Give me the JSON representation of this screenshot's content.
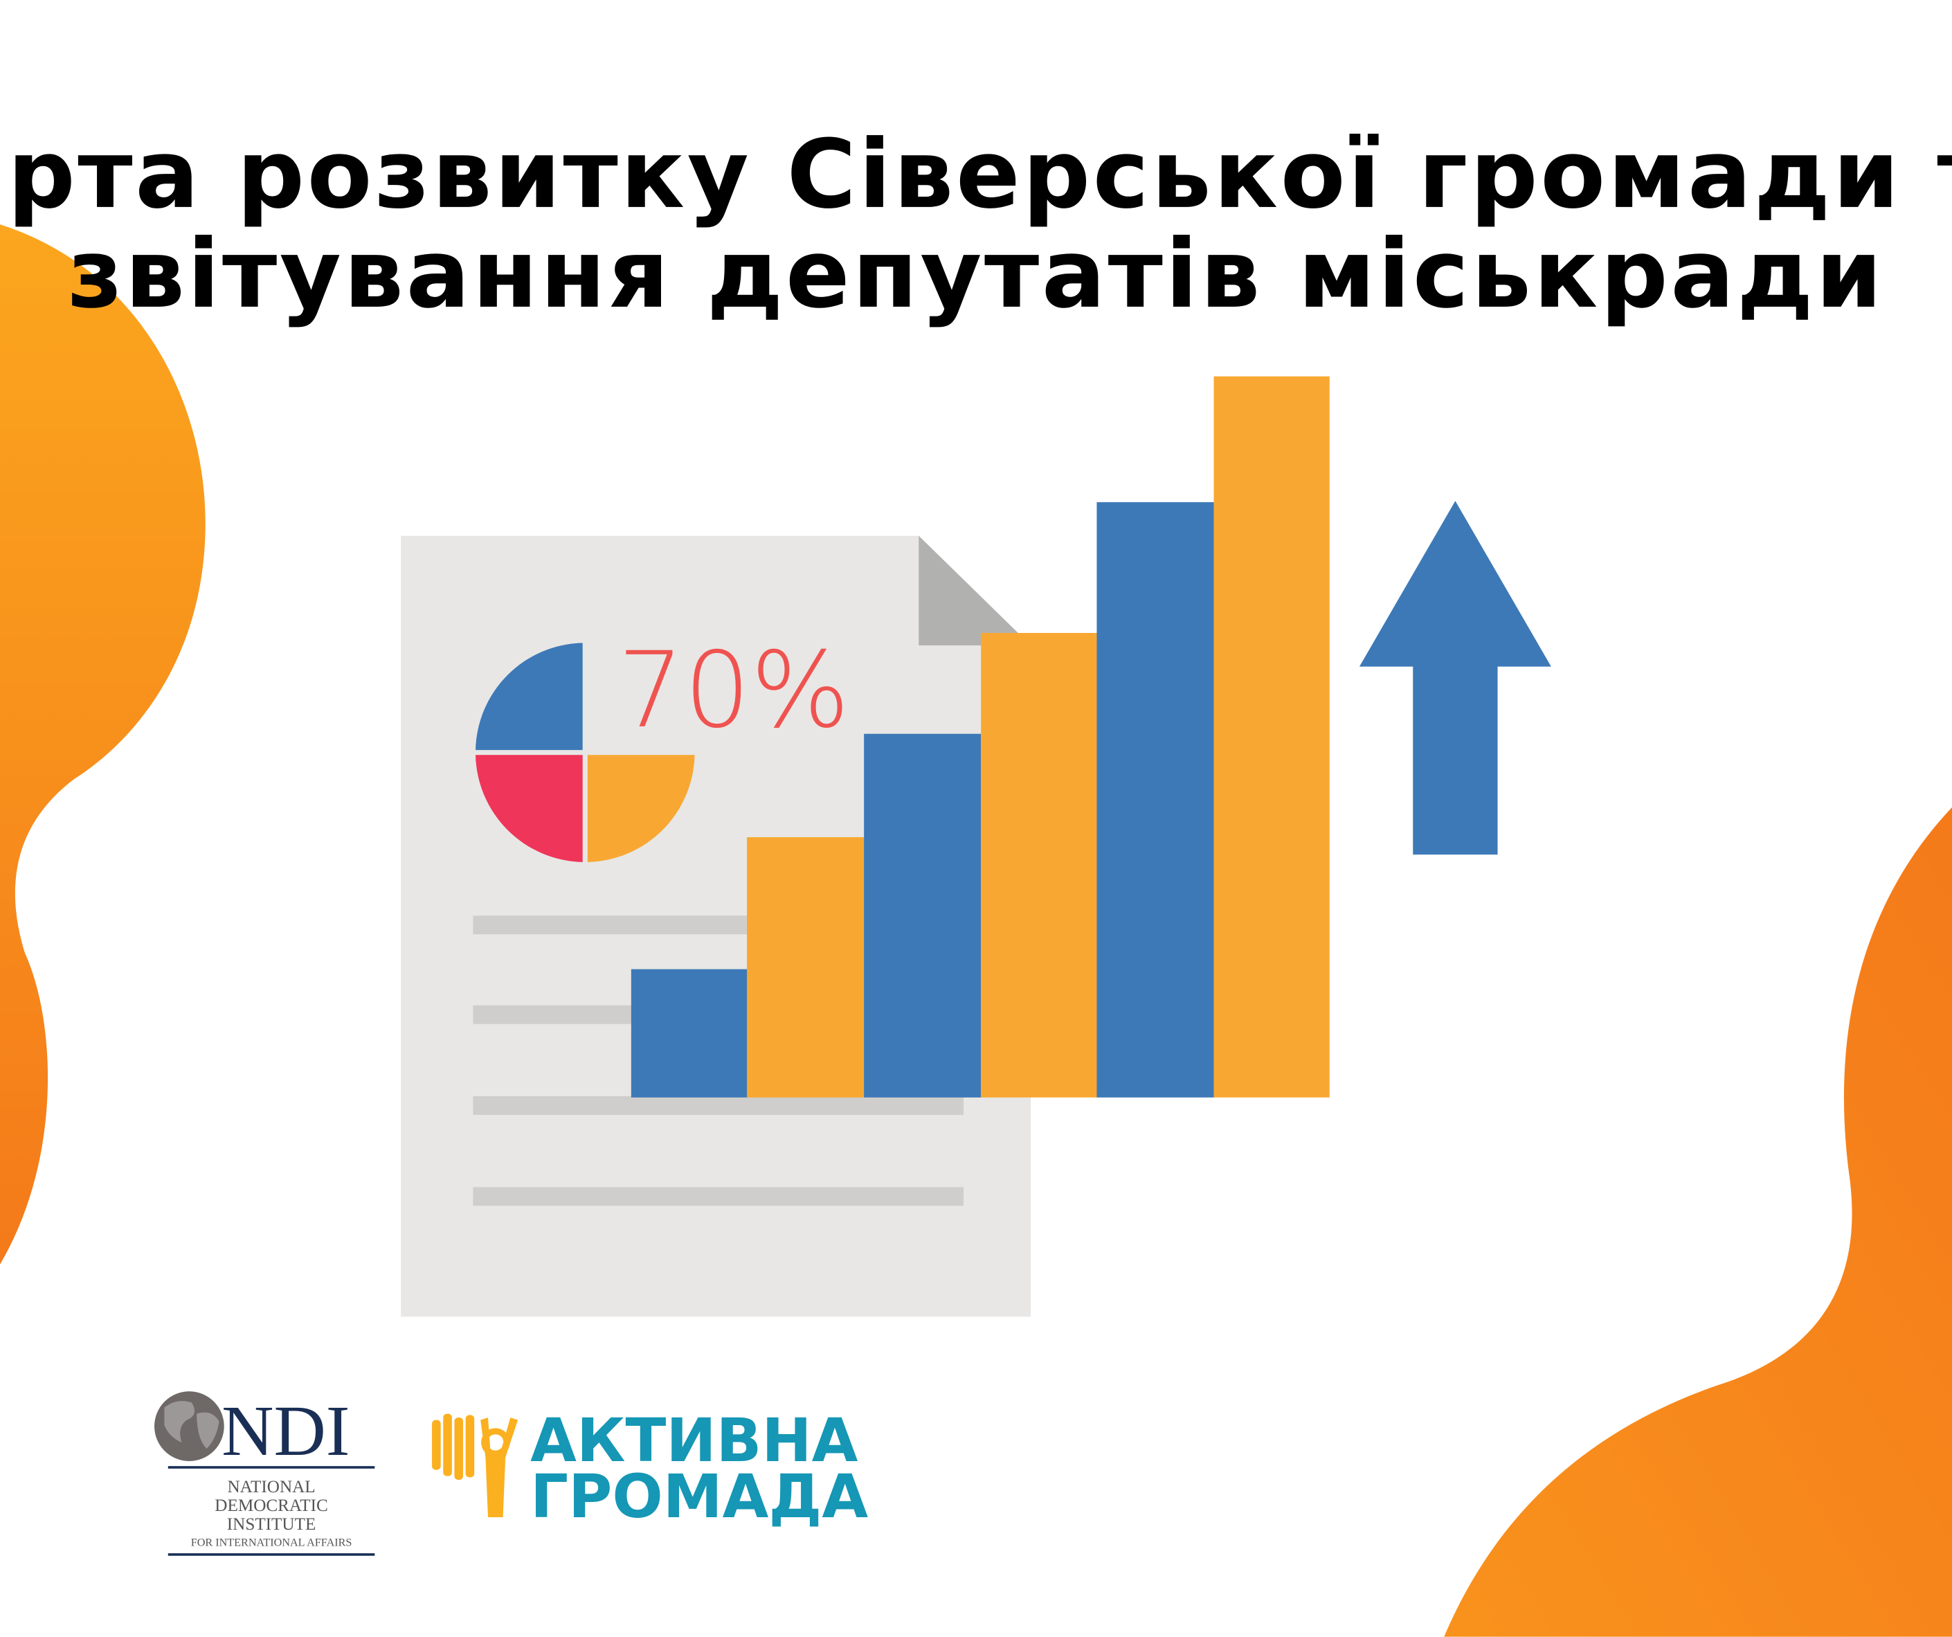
{
  "title": {
    "line1": "Карта розвитку Сіверської громади та",
    "line2": "звітування депутатів міськради"
  },
  "illustration": {
    "percent_label": "70%",
    "pie_quadrant_colors": [
      "#3d79b7",
      "#ef3559",
      "#f8a832"
    ],
    "bar_colors": [
      "#3d79b7",
      "#f8a832"
    ],
    "arrow_icon": "arrow-up-icon",
    "document_icon": "document-icon"
  },
  "logos": {
    "ndi": {
      "mark": "NDI",
      "line1": "NATIONAL",
      "line2": "DEMOCRATIC",
      "line3": "INSTITUTE",
      "line4": "FOR INTERNATIONAL AFFAIRS"
    },
    "active_community": {
      "line1": "АКТИВНА",
      "line2": "ГРОМАДА"
    }
  },
  "colors": {
    "orange": "#f8a832",
    "blob_orange": "#f7941d",
    "blue": "#3d79b7",
    "red": "#ef3559",
    "percent_red": "#ef5350",
    "teal": "#1597b5",
    "ndi_navy": "#1a2f55"
  }
}
